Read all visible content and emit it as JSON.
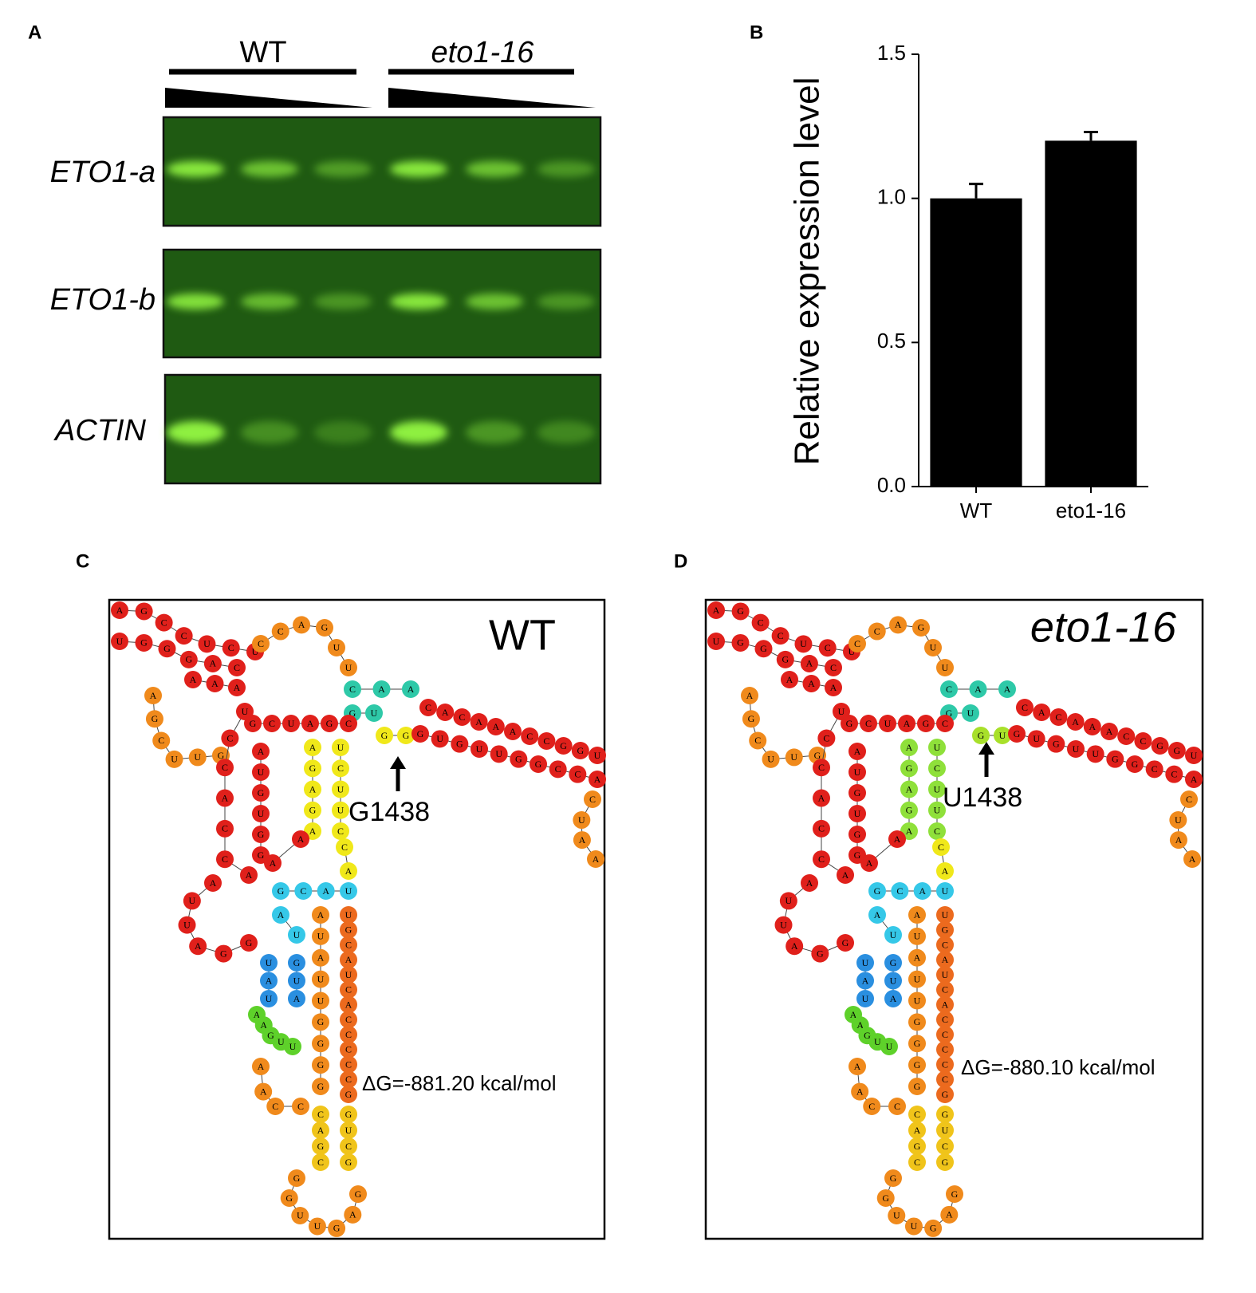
{
  "panel_labels": [
    "A",
    "B",
    "C",
    "D"
  ],
  "gel": {
    "groups": [
      "WT",
      "eto1-16"
    ],
    "rows": [
      "ETO1-a",
      "ETO1-b",
      "ACTIN"
    ]
  },
  "chart_data": {
    "type": "bar",
    "ylabel": "Relative expression level",
    "categories": [
      "WT",
      "eto1-16"
    ],
    "values": [
      1.0,
      1.2
    ],
    "errors": [
      0.05,
      0.03
    ],
    "color": "#000000",
    "ylim": [
      0,
      1.5
    ],
    "yticks": [
      {
        "value": 0,
        "label": "0.0"
      },
      0.5,
      {
        "value": 1,
        "label": "1.0"
      },
      1.5
    ]
  },
  "structures": [
    {
      "title": "WT",
      "italic": false,
      "mutation": "G1438",
      "energy": "ΔG=-881.20 kcal/mol",
      "segments": [
        {
          "letters": [
            "A",
            "G",
            "C",
            "C",
            "U",
            "C",
            "U"
          ],
          "color": "#e0201b"
        },
        {
          "letters": [
            "U",
            "G",
            "G",
            "G",
            "A",
            "C"
          ],
          "color": "#e0201b"
        },
        {
          "letters": [
            "A",
            "A",
            "A"
          ],
          "color": "#e0201b"
        },
        {
          "letters": [
            "C",
            "C",
            "A",
            "G",
            "U",
            "U"
          ],
          "color": "#f08a1c"
        },
        {
          "letters": [
            "A",
            "G",
            "C",
            "U",
            "U",
            "G"
          ],
          "color": "#f08a1c"
        },
        {
          "letters": [
            "C",
            "A",
            "A"
          ],
          "color": "#2ec9a8"
        },
        {
          "letters": [
            "G",
            "U"
          ],
          "color": "#2ec9a8"
        },
        {
          "letters": [
            "G",
            "G"
          ],
          "color": "#f0e81a"
        },
        {
          "letters": [
            "C",
            "A",
            "C",
            "A",
            "A",
            "A",
            "C",
            "C",
            "G",
            "G",
            "U"
          ],
          "color": "#e0201b"
        },
        {
          "letters": [
            "G",
            "U",
            "G",
            "U",
            "U",
            "G",
            "G",
            "C",
            "C",
            "A"
          ],
          "color": "#e0201b"
        },
        {
          "letters": [
            "C",
            "U",
            "A",
            "A"
          ],
          "color": "#f08a1c"
        },
        {
          "letters": [
            "G",
            "C",
            "U",
            "A",
            "G",
            "C"
          ],
          "color": "#e0201b"
        },
        {
          "letters": [
            "A",
            "G",
            "A",
            "G",
            "A"
          ],
          "color": "#f0e81a"
        },
        {
          "letters": [
            "U",
            "C",
            "U",
            "U",
            "C"
          ],
          "color": "#f0e81a"
        },
        {
          "letters": [
            "U",
            "C",
            "C",
            "A",
            "C",
            "C",
            "A"
          ],
          "color": "#e0201b"
        },
        {
          "letters": [
            "A",
            "U",
            "G",
            "U",
            "G",
            "G"
          ],
          "color": "#e0201b"
        },
        {
          "letters": [
            "A",
            "U",
            "U",
            "A",
            "G",
            "G"
          ],
          "color": "#e0201b"
        },
        {
          "letters": [
            "A",
            "A"
          ],
          "color": "#e0201b"
        },
        {
          "letters": [
            "C",
            "A"
          ],
          "color": "#f0e81a"
        },
        {
          "letters": [
            "G",
            "C",
            "A",
            "U"
          ],
          "color": "#35c8e8"
        },
        {
          "letters": [
            "A",
            "U"
          ],
          "color": "#35c8e8"
        },
        {
          "letters": [
            "U",
            "A",
            "U"
          ],
          "color": "#2a8fe0"
        },
        {
          "letters": [
            "G",
            "U",
            "A"
          ],
          "color": "#2a8fe0"
        },
        {
          "letters": [
            "A",
            "U",
            "A",
            "U",
            "U",
            "G",
            "G",
            "G",
            "G"
          ],
          "color": "#f08a1c"
        },
        {
          "letters": [
            "U",
            "G",
            "C",
            "A",
            "U",
            "C",
            "A",
            "C",
            "C",
            "C",
            "C",
            "C",
            "G"
          ],
          "color": "#ec6a1e"
        },
        {
          "letters": [
            "A",
            "A",
            "G",
            "U",
            "U"
          ],
          "color": "#5ed12a"
        },
        {
          "letters": [
            "A",
            "A",
            "C",
            "C"
          ],
          "color": "#f08a1c"
        },
        {
          "letters": [
            "C",
            "A",
            "G",
            "C"
          ],
          "color": "#f0c41a"
        },
        {
          "letters": [
            "G",
            "U",
            "C",
            "G"
          ],
          "color": "#f0c41a"
        },
        {
          "letters": [
            "G",
            "G",
            "U",
            "U",
            "G",
            "A",
            "G"
          ],
          "color": "#f08a1c"
        }
      ]
    },
    {
      "title": "eto1-16",
      "italic": true,
      "mutation": "U1438",
      "energy": "ΔG=-880.10 kcal/mol",
      "segments": [
        {
          "letters": [
            "A",
            "G",
            "C",
            "C",
            "U",
            "C",
            "U"
          ],
          "color": "#e0201b"
        },
        {
          "letters": [
            "U",
            "G",
            "G",
            "G",
            "A",
            "C"
          ],
          "color": "#e0201b"
        },
        {
          "letters": [
            "A",
            "A",
            "A"
          ],
          "color": "#e0201b"
        },
        {
          "letters": [
            "C",
            "C",
            "A",
            "G",
            "U",
            "U"
          ],
          "color": "#f08a1c"
        },
        {
          "letters": [
            "A",
            "G",
            "C",
            "U",
            "U",
            "G"
          ],
          "color": "#f08a1c"
        },
        {
          "letters": [
            "C",
            "A",
            "A"
          ],
          "color": "#2ec9a8"
        },
        {
          "letters": [
            "G",
            "U"
          ],
          "color": "#2ec9a8"
        },
        {
          "letters": [
            "G",
            "U"
          ],
          "color": "#a8e02a"
        },
        {
          "letters": [
            "C",
            "A",
            "C",
            "A",
            "A",
            "A",
            "C",
            "C",
            "G",
            "G",
            "U"
          ],
          "color": "#e0201b"
        },
        {
          "letters": [
            "G",
            "U",
            "G",
            "U",
            "U",
            "G",
            "G",
            "C",
            "C",
            "A"
          ],
          "color": "#e0201b"
        },
        {
          "letters": [
            "C",
            "U",
            "A",
            "A"
          ],
          "color": "#f08a1c"
        },
        {
          "letters": [
            "G",
            "C",
            "U",
            "A",
            "G",
            "C"
          ],
          "color": "#e0201b"
        },
        {
          "letters": [
            "A",
            "G",
            "A",
            "G",
            "A"
          ],
          "color": "#8fe03a"
        },
        {
          "letters": [
            "U",
            "C",
            "U",
            "U",
            "C"
          ],
          "color": "#8fe03a"
        },
        {
          "letters": [
            "U",
            "C",
            "C",
            "A",
            "C",
            "C",
            "A"
          ],
          "color": "#e0201b"
        },
        {
          "letters": [
            "A",
            "U",
            "G",
            "U",
            "G",
            "G"
          ],
          "color": "#e0201b"
        },
        {
          "letters": [
            "A",
            "U",
            "U",
            "A",
            "G",
            "G"
          ],
          "color": "#e0201b"
        },
        {
          "letters": [
            "A",
            "A"
          ],
          "color": "#e0201b"
        },
        {
          "letters": [
            "C",
            "A"
          ],
          "color": "#f0e81a"
        },
        {
          "letters": [
            "G",
            "C",
            "A",
            "U"
          ],
          "color": "#35c8e8"
        },
        {
          "letters": [
            "A",
            "U"
          ],
          "color": "#35c8e8"
        },
        {
          "letters": [
            "U",
            "A",
            "U"
          ],
          "color": "#2a8fe0"
        },
        {
          "letters": [
            "G",
            "U",
            "A"
          ],
          "color": "#2a8fe0"
        },
        {
          "letters": [
            "A",
            "U",
            "A",
            "U",
            "U",
            "G",
            "G",
            "G",
            "G"
          ],
          "color": "#f08a1c"
        },
        {
          "letters": [
            "U",
            "G",
            "C",
            "A",
            "U",
            "C",
            "A",
            "C",
            "C",
            "C",
            "C",
            "C",
            "G"
          ],
          "color": "#ec6a1e"
        },
        {
          "letters": [
            "A",
            "A",
            "G",
            "U",
            "U"
          ],
          "color": "#5ed12a"
        },
        {
          "letters": [
            "A",
            "A",
            "C",
            "C"
          ],
          "color": "#f08a1c"
        },
        {
          "letters": [
            "C",
            "A",
            "G",
            "C"
          ],
          "color": "#f0c41a"
        },
        {
          "letters": [
            "G",
            "U",
            "C",
            "G"
          ],
          "color": "#f0c41a"
        },
        {
          "letters": [
            "G",
            "G",
            "U",
            "U",
            "G",
            "A",
            "G"
          ],
          "color": "#f08a1c"
        }
      ]
    }
  ]
}
